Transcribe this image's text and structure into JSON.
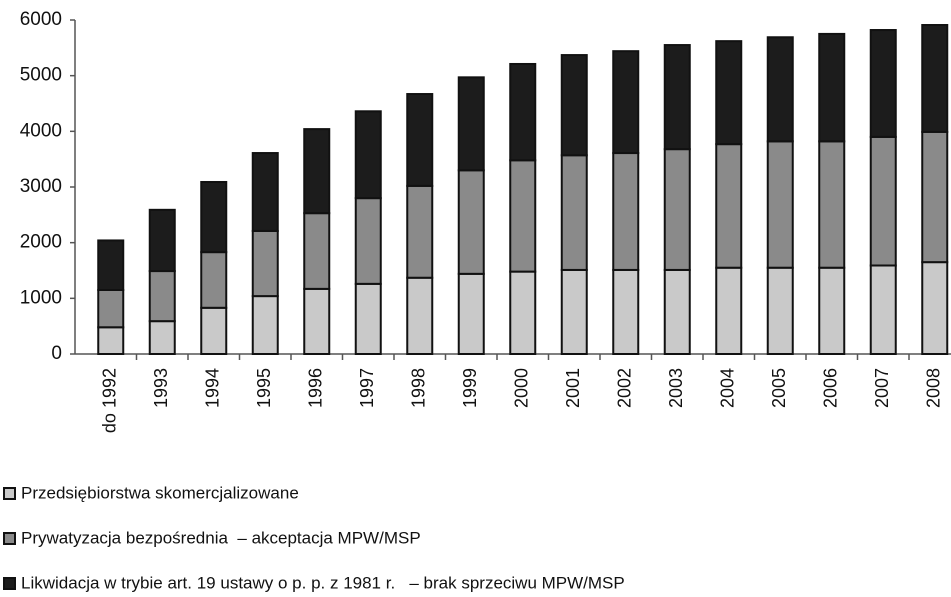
{
  "chart_data": {
    "type": "stacked-bar",
    "categories": [
      "do 1992",
      "1993",
      "1994",
      "1995",
      "1996",
      "1997",
      "1998",
      "1999",
      "2000",
      "2001",
      "2002",
      "2003",
      "2004",
      "2005",
      "2006",
      "2007",
      "2008"
    ],
    "series": [
      {
        "name": "Przedsiębiorstwa skomercjalizowane",
        "color": "#c9c9c9",
        "values": [
          480,
          590,
          830,
          1040,
          1170,
          1260,
          1370,
          1440,
          1480,
          1510,
          1510,
          1510,
          1550,
          1550,
          1550,
          1590,
          1650
        ]
      },
      {
        "name": "Prywatyzacja bezpośrednia  – akceptacja MPW/MSP",
        "color": "#8a8a8a",
        "values": [
          670,
          900,
          1000,
          1170,
          1360,
          1540,
          1650,
          1860,
          2000,
          2060,
          2100,
          2170,
          2220,
          2270,
          2270,
          2310,
          2340
        ]
      },
      {
        "name": "Likwidacja w trybie art. 19 ustawy o p. p. z 1981 r.   – brak sprzeciwu MPW/MSP",
        "color": "#1c1c1c",
        "values": [
          890,
          1100,
          1260,
          1400,
          1510,
          1560,
          1650,
          1670,
          1730,
          1800,
          1830,
          1870,
          1850,
          1870,
          1930,
          1920,
          1920
        ]
      }
    ],
    "ylim": [
      0,
      6000
    ],
    "yticks": [
      0,
      1000,
      2000,
      3000,
      4000,
      5000,
      6000
    ],
    "grid": false,
    "legend": "bottom"
  }
}
